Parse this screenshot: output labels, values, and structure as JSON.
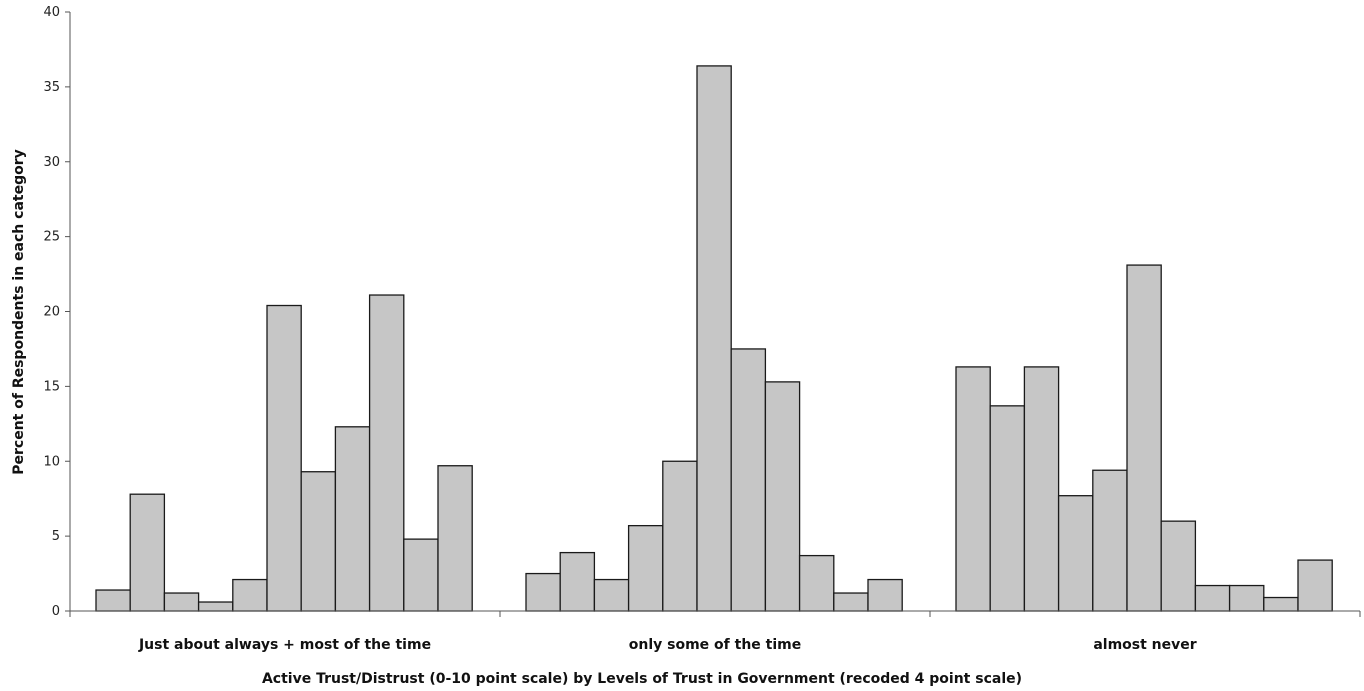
{
  "chart_data": {
    "type": "bar",
    "title": "",
    "xlabel": "Active Trust/Distrust (0-10 point scale) by Levels of Trust in Government (recoded 4 point scale)",
    "ylabel": "Percent of Respondents in each category",
    "ylim": [
      0,
      40
    ],
    "yticks": [
      "0",
      "5",
      "10",
      "15",
      "20",
      "25",
      "30",
      "35",
      "40"
    ],
    "grid": false,
    "groups": [
      {
        "label": "Just about always + most of the time",
        "values": [
          1.4,
          7.8,
          1.2,
          0.6,
          2.1,
          20.4,
          9.3,
          12.3,
          21.1,
          4.8,
          9.7
        ]
      },
      {
        "label": "only some of the time",
        "values": [
          2.5,
          3.9,
          2.1,
          5.7,
          10.0,
          36.4,
          17.5,
          15.3,
          3.7,
          1.2,
          2.1
        ]
      },
      {
        "label": "almost never",
        "values": [
          16.3,
          13.7,
          16.3,
          7.7,
          9.4,
          23.1,
          6.0,
          1.7,
          1.7,
          0.9,
          3.4
        ]
      }
    ]
  }
}
